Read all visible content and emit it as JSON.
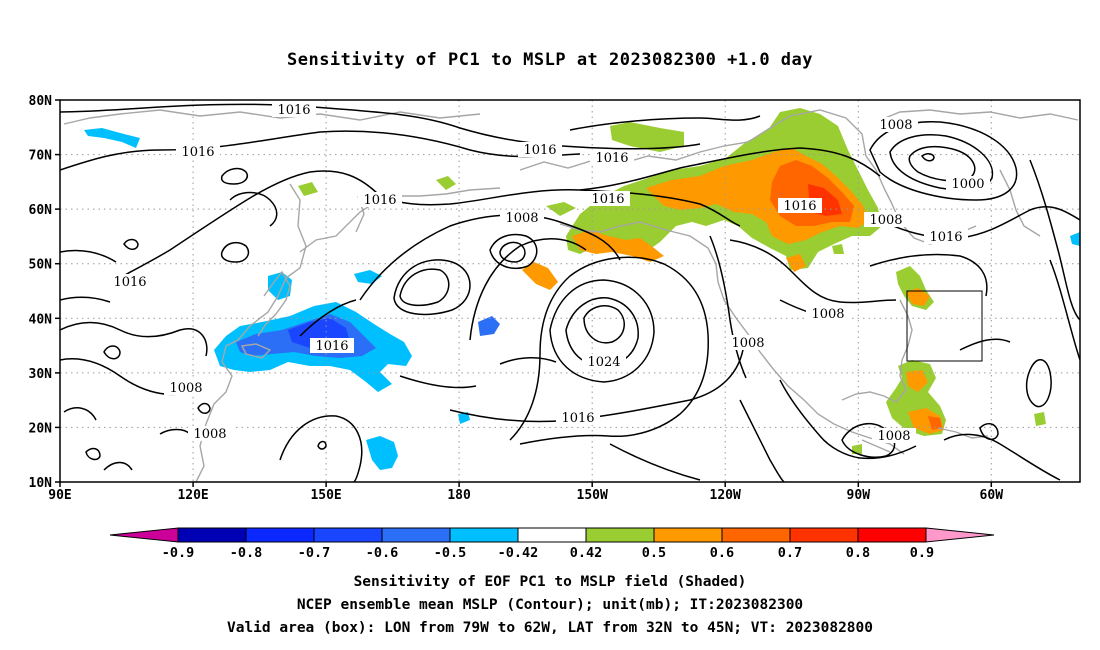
{
  "title": "Sensitivity of PC1 to MSLP at 2023082300 +1.0 day",
  "lat_labels": [
    "80N",
    "70N",
    "60N",
    "50N",
    "40N",
    "30N",
    "20N",
    "10N"
  ],
  "lon_labels": [
    "90E",
    "120E",
    "150E",
    "180",
    "150W",
    "120W",
    "90W",
    "60W"
  ],
  "contour_labels": [
    "1016",
    "1016",
    "1016",
    "1016",
    "1016",
    "1016",
    "1016",
    "1016",
    "1016",
    "1016",
    "1016",
    "1016",
    "1008",
    "1008",
    "1008",
    "1008",
    "1008",
    "1008",
    "1008",
    "1008",
    "1000",
    "1024"
  ],
  "colorbar": {
    "tick_labels": [
      "-0.9",
      "-0.8",
      "-0.7",
      "-0.6",
      "-0.5",
      "-0.42",
      "0.42",
      "0.5",
      "0.6",
      "0.7",
      "0.8",
      "0.9"
    ],
    "colors": [
      "#cc0099",
      "#0000b4",
      "#0a28ff",
      "#1a46ff",
      "#2a6ff5",
      "#00bfff",
      "#ffffff",
      "#9acd32",
      "#ff9900",
      "#ff6600",
      "#ff3300",
      "#ff0000",
      "#ff99cc"
    ]
  },
  "shading_colors": {
    "cyan": "#00bfff",
    "light_blue": "#2a6ff5",
    "blue": "#1a46ff",
    "green": "#9acd32",
    "orange": "#ff9900",
    "dark_orange": "#ff6600",
    "red": "#ff3300"
  },
  "valid_box": {
    "lon_from": "79W",
    "lon_to": "62W",
    "lat_from": "32N",
    "lat_to": "45N"
  },
  "caption": {
    "line1": "Sensitivity of EOF PC1 to MSLP field (Shaded)",
    "line2": "NCEP ensemble mean MSLP (Contour); unit(mb); IT:2023082300",
    "line3": "Valid area (box): LON from 79W to 62W, LAT from 32N to 45N; VT: 2023082800"
  }
}
